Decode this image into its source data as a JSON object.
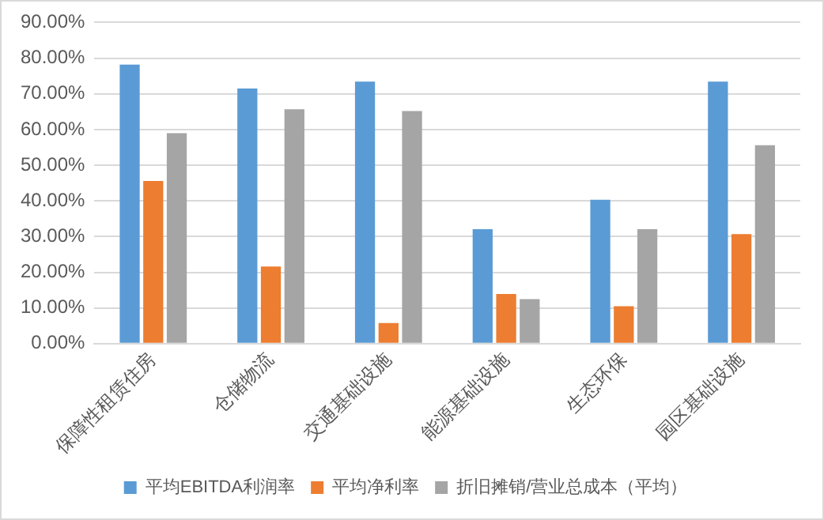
{
  "chart_data": {
    "type": "bar",
    "categories": [
      "保障性租赁住房",
      "仓储物流",
      "交通基础设施",
      "能源基础设施",
      "生态环保",
      "园区基础设施"
    ],
    "series": [
      {
        "name": "平均EBITDA利润率",
        "color": "#5b9bd5",
        "values": [
          78.2,
          71.5,
          73.4,
          32.1,
          40.3,
          73.4
        ]
      },
      {
        "name": "平均净利率",
        "color": "#ed7d31",
        "values": [
          45.6,
          21.6,
          5.8,
          13.9,
          10.5,
          30.7
        ]
      },
      {
        "name": "折旧摊销/营业总成本（平均）",
        "color": "#a5a5a5",
        "values": [
          59.0,
          65.7,
          65.2,
          12.5,
          32.1,
          55.6
        ]
      }
    ],
    "ylim": [
      0,
      90
    ],
    "yticks": [
      {
        "value": 0,
        "label": "0.00%"
      },
      {
        "value": 10,
        "label": "10.00%"
      },
      {
        "value": 20,
        "label": "20.00%"
      },
      {
        "value": 30,
        "label": "30.00%"
      },
      {
        "value": 40,
        "label": "40.00%"
      },
      {
        "value": 50,
        "label": "50.00%"
      },
      {
        "value": 60,
        "label": "60.00%"
      },
      {
        "value": 70,
        "label": "70.00%"
      },
      {
        "value": 80,
        "label": "80.00%"
      },
      {
        "value": 90,
        "label": "90.00%"
      }
    ],
    "grid": "y",
    "legend": "bottom"
  }
}
